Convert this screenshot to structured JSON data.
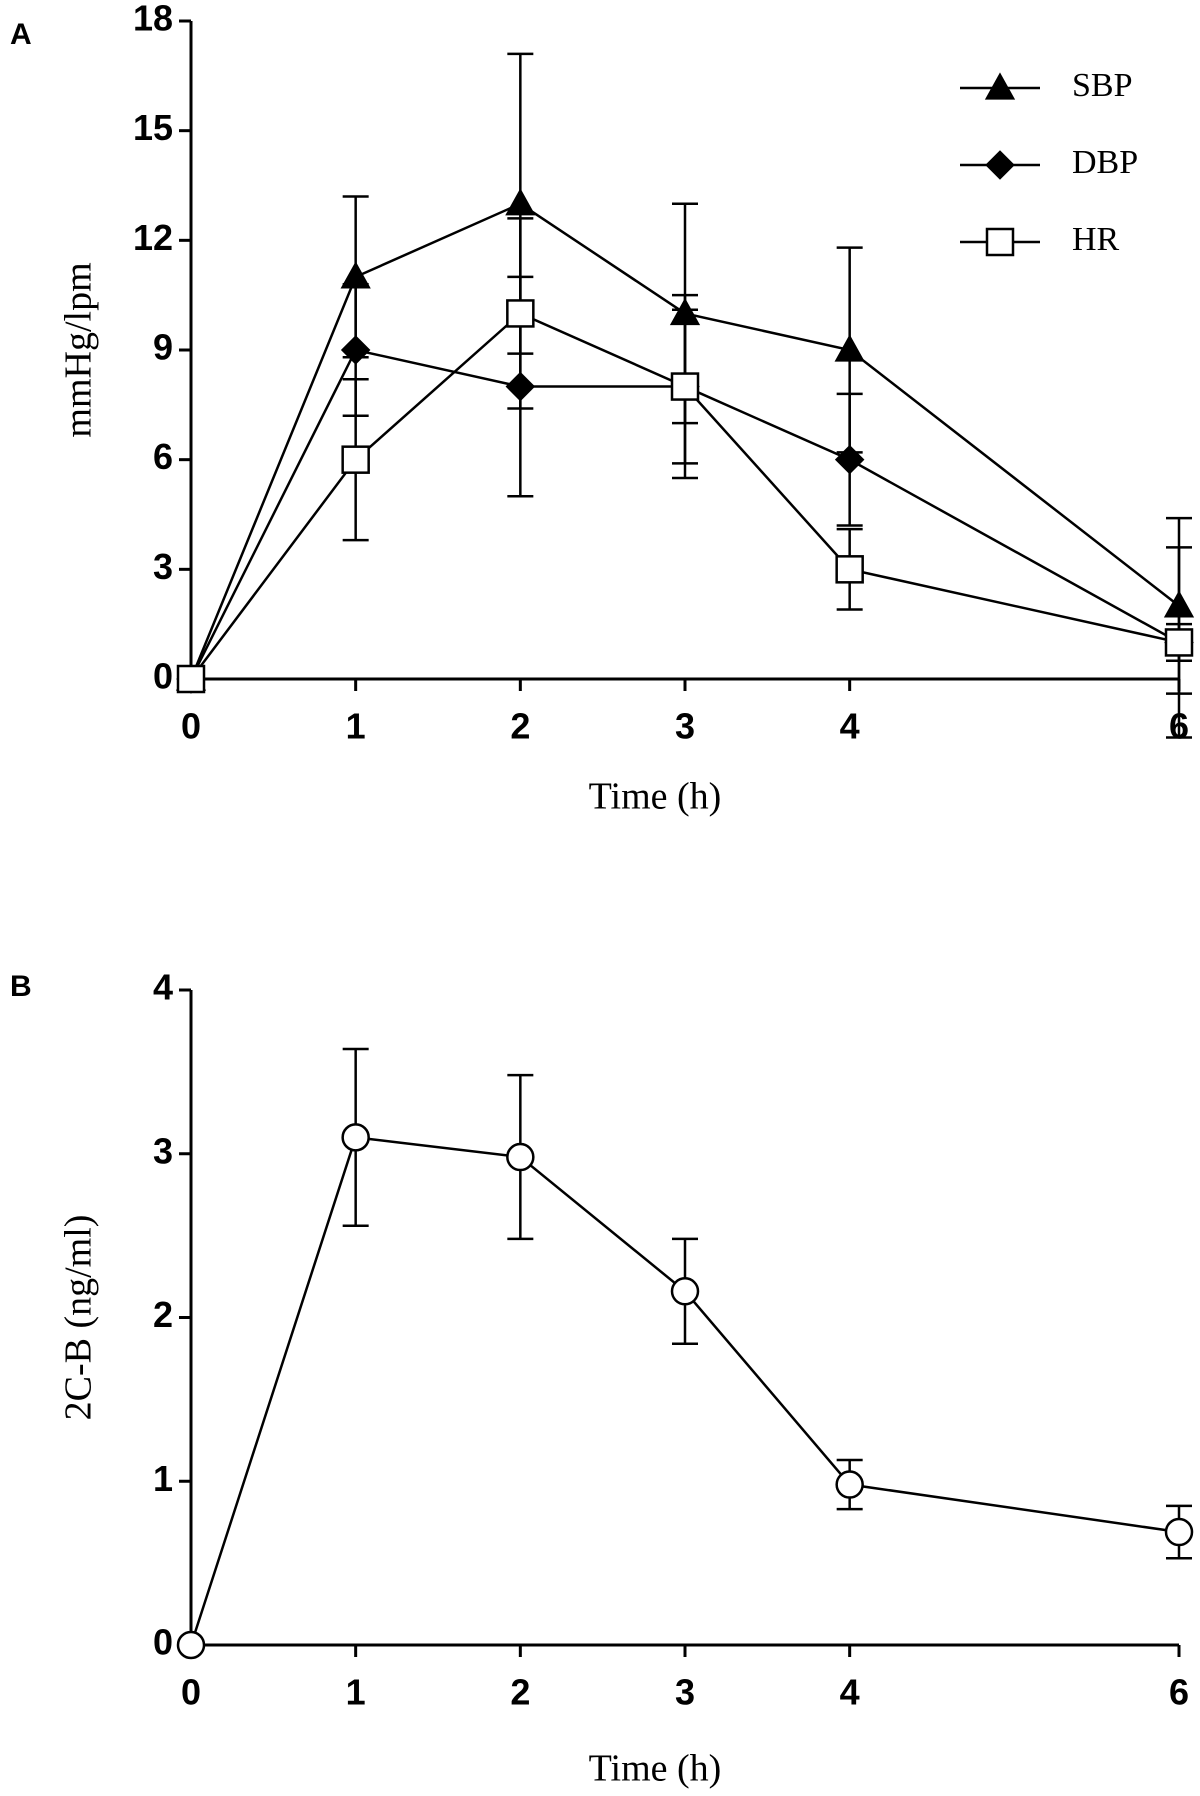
{
  "chart_data": [
    {
      "type": "line",
      "panel_label": "A",
      "xlabel": "Time (h)",
      "ylabel": "mmHg/lpm",
      "x": [
        0,
        1,
        2,
        3,
        4,
        6
      ],
      "xlim": [
        0,
        6
      ],
      "xticks": [
        0,
        1,
        2,
        3,
        4,
        6
      ],
      "ylim": [
        0,
        18
      ],
      "yticks": [
        0,
        3,
        6,
        9,
        12,
        15,
        18
      ],
      "legend": "upper right",
      "series": [
        {
          "name": "SBP",
          "color": "#000000",
          "marker": "triangle",
          "values": [
            0,
            11,
            13,
            10,
            9,
            2
          ],
          "errors": [
            0,
            2.2,
            4.1,
            3,
            2.8,
            2.4
          ]
        },
        {
          "name": "DBP",
          "color": "#000000",
          "marker": "diamond",
          "values": [
            0,
            9,
            8,
            8,
            6,
            1
          ],
          "errors": [
            0,
            1.8,
            3,
            2.1,
            1.8,
            2.6
          ]
        },
        {
          "name": "HR",
          "color": "#000000",
          "marker": "square",
          "values": [
            0,
            6,
            10,
            8,
            3,
            1
          ],
          "errors": [
            0,
            2.2,
            2.6,
            2.5,
            1.1,
            0.5
          ]
        }
      ]
    },
    {
      "type": "line",
      "panel_label": "B",
      "xlabel": "Time (h)",
      "ylabel": "2C-B (ng/ml)",
      "x": [
        0,
        1,
        2,
        3,
        4,
        6
      ],
      "xlim": [
        0,
        6
      ],
      "xticks": [
        0,
        1,
        2,
        3,
        4,
        6
      ],
      "ylim": [
        0,
        4
      ],
      "yticks": [
        0,
        1,
        2,
        3,
        4
      ],
      "series": [
        {
          "color": "#000000",
          "marker": "circle",
          "values": [
            0,
            3.1,
            2.98,
            2.16,
            0.98,
            0.69
          ],
          "errors": [
            0,
            0.54,
            0.5,
            0.32,
            0.15,
            0.16
          ]
        }
      ]
    }
  ]
}
